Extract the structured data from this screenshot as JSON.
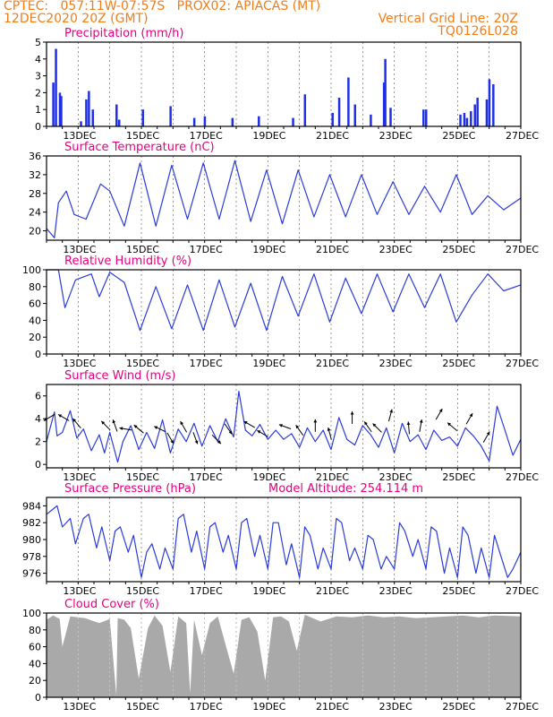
{
  "header": {
    "line1": "CPTEC:   057:11W-07:57S   PROX02: APIACAS (MT)",
    "line2": "12DEC2020 20Z (GMT)",
    "grid_note": "Vertical Grid Line: 20Z",
    "model_id": "TQ0126L028"
  },
  "colors": {
    "frame": "#000000",
    "title_magenta": "#e6007e",
    "header_orange": "#f07d1a",
    "bar_blue": "#1f2fe6",
    "line_blue": "#2a3bd9",
    "cloud_gray": "#a9a9a9",
    "grid": "#555555"
  },
  "shared_time_axis": {
    "start": "12DEC2020 20Z",
    "end": "27DEC2020 20Z",
    "tick_labels": [
      "13DEC",
      "15DEC",
      "17DEC",
      "19DEC",
      "21DEC",
      "23DEC",
      "25DEC",
      "27DEC"
    ],
    "vertical_grid_lines": "daily at 20Z, dashed"
  },
  "chart_data": [
    {
      "type": "bar",
      "title": "Precipitation (mm/h)",
      "ylim": [
        0,
        5
      ],
      "yticks": [
        0,
        1,
        2,
        3,
        4,
        5
      ],
      "x": [
        "2020-12-13 01Z",
        "2020-12-13 03Z",
        "2020-12-13 06Z",
        "2020-12-13 07Z",
        "2020-12-13 22Z",
        "2020-12-14 02Z",
        "2020-12-14 04Z",
        "2020-12-14 07Z",
        "2020-12-15 01Z",
        "2020-12-15 03Z",
        "2020-12-15 21Z",
        "2020-12-16 18Z",
        "2020-12-17 12Z",
        "2020-12-17 20Z",
        "2020-12-18 17Z",
        "2020-12-19 13Z",
        "2020-12-20 15Z",
        "2020-12-21 00Z",
        "2020-12-21 21Z",
        "2020-12-22 02Z",
        "2020-12-22 09Z",
        "2020-12-22 14Z",
        "2020-12-23 02Z",
        "2020-12-23 12Z",
        "2020-12-23 13Z",
        "2020-12-23 17Z",
        "2020-12-24 18Z",
        "2020-12-24 20Z",
        "2020-12-25 22Z",
        "2020-12-26 01Z",
        "2020-12-26 03Z",
        "2020-12-26 06Z",
        "2020-12-26 09Z",
        "2020-12-26 11Z",
        "2020-12-26 18Z",
        "2020-12-26 20Z",
        "2020-12-26 23Z"
      ],
      "values": [
        2.6,
        4.6,
        2.0,
        1.8,
        0.3,
        1.6,
        2.1,
        1.0,
        1.3,
        0.4,
        1.0,
        1.2,
        0.5,
        0.6,
        0.5,
        0.6,
        0.5,
        1.9,
        0.8,
        1.7,
        2.9,
        1.3,
        0.7,
        2.6,
        4.0,
        1.1,
        1.0,
        1.0,
        0.7,
        0.8,
        0.5,
        0.9,
        1.3,
        1.7,
        1.6,
        2.8,
        2.5
      ]
    },
    {
      "type": "line",
      "title": "Surface Temperature (nC)",
      "ylim": [
        18,
        36
      ],
      "yticks": [
        20,
        24,
        28,
        32,
        36
      ],
      "x": [
        "2020-12-12 20Z",
        "2020-12-13 02Z",
        "2020-12-13 05Z",
        "2020-12-13 11Z",
        "2020-12-13 17Z",
        "2020-12-14 02Z",
        "2020-12-14 13Z",
        "2020-12-14 20Z",
        "2020-12-15 07Z",
        "2020-12-15 19Z",
        "2020-12-16 07Z",
        "2020-12-16 19Z",
        "2020-12-17 07Z",
        "2020-12-17 19Z",
        "2020-12-18 07Z",
        "2020-12-18 19Z",
        "2020-12-19 07Z",
        "2020-12-19 19Z",
        "2020-12-20 07Z",
        "2020-12-20 19Z",
        "2020-12-21 07Z",
        "2020-12-21 19Z",
        "2020-12-22 07Z",
        "2020-12-22 19Z",
        "2020-12-23 07Z",
        "2020-12-23 19Z",
        "2020-12-24 07Z",
        "2020-12-24 19Z",
        "2020-12-25 07Z",
        "2020-12-25 19Z",
        "2020-12-26 07Z",
        "2020-12-26 19Z",
        "2020-12-27 07Z",
        "2020-12-27 20Z"
      ],
      "values": [
        20.5,
        18.5,
        26.0,
        28.5,
        23.5,
        22.5,
        30.0,
        28.5,
        21.0,
        34.5,
        21.0,
        34.0,
        22.5,
        34.5,
        22.5,
        35.0,
        22.0,
        33.0,
        21.5,
        33.0,
        23.0,
        32.0,
        23.0,
        32.0,
        23.5,
        30.5,
        23.5,
        29.5,
        24.0,
        32.0,
        23.5,
        27.5,
        24.5,
        27.0
      ]
    },
    {
      "type": "line",
      "title": "Relative Humidity (%)",
      "ylim": [
        0,
        100
      ],
      "yticks": [
        0,
        20,
        40,
        60,
        80,
        100
      ],
      "x": [
        "2020-12-12 20Z",
        "2020-12-13 05Z",
        "2020-12-13 10Z",
        "2020-12-13 18Z",
        "2020-12-14 06Z",
        "2020-12-14 12Z",
        "2020-12-14 20Z",
        "2020-12-15 07Z",
        "2020-12-15 19Z",
        "2020-12-16 07Z",
        "2020-12-16 19Z",
        "2020-12-17 07Z",
        "2020-12-17 19Z",
        "2020-12-18 07Z",
        "2020-12-18 19Z",
        "2020-12-19 07Z",
        "2020-12-19 19Z",
        "2020-12-20 07Z",
        "2020-12-20 19Z",
        "2020-12-21 07Z",
        "2020-12-21 19Z",
        "2020-12-22 07Z",
        "2020-12-22 19Z",
        "2020-12-23 07Z",
        "2020-12-23 19Z",
        "2020-12-24 07Z",
        "2020-12-24 19Z",
        "2020-12-25 07Z",
        "2020-12-25 19Z",
        "2020-12-26 07Z",
        "2020-12-26 19Z",
        "2020-12-27 07Z",
        "2020-12-27 20Z"
      ],
      "values": [
        100,
        100,
        55,
        88,
        95,
        68,
        97,
        85,
        28,
        80,
        30,
        82,
        28,
        88,
        32,
        84,
        28,
        92,
        45,
        95,
        38,
        90,
        48,
        95,
        50,
        95,
        55,
        95,
        38,
        70,
        95,
        75,
        82
      ]
    },
    {
      "type": "line",
      "title": "Surface Wind (m/s)",
      "ylim": [
        -0.3,
        7
      ],
      "yticks": [
        0,
        2,
        4,
        6
      ],
      "x": [
        "2020-12-12 20Z",
        "2020-12-13 02Z",
        "2020-12-13 04Z",
        "2020-12-13 08Z",
        "2020-12-13 14Z",
        "2020-12-13 19Z",
        "2020-12-14 00Z",
        "2020-12-14 06Z",
        "2020-12-14 12Z",
        "2020-12-14 16Z",
        "2020-12-14 20Z",
        "2020-12-15 02Z",
        "2020-12-15 06Z",
        "2020-12-15 12Z",
        "2020-12-15 18Z",
        "2020-12-16 00Z",
        "2020-12-16 06Z",
        "2020-12-16 12Z",
        "2020-12-16 18Z",
        "2020-12-17 00Z",
        "2020-12-17 06Z",
        "2020-12-17 12Z",
        "2020-12-17 18Z",
        "2020-12-18 00Z",
        "2020-12-18 06Z",
        "2020-12-18 12Z",
        "2020-12-18 18Z",
        "2020-12-18 22Z",
        "2020-12-19 03Z",
        "2020-12-19 08Z",
        "2020-12-19 14Z",
        "2020-12-19 20Z",
        "2020-12-20 02Z",
        "2020-12-20 08Z",
        "2020-12-20 14Z",
        "2020-12-20 20Z",
        "2020-12-21 02Z",
        "2020-12-21 08Z",
        "2020-12-21 14Z",
        "2020-12-21 20Z",
        "2020-12-22 02Z",
        "2020-12-22 08Z",
        "2020-12-22 14Z",
        "2020-12-22 20Z",
        "2020-12-23 02Z",
        "2020-12-23 08Z",
        "2020-12-23 14Z",
        "2020-12-23 20Z",
        "2020-12-24 02Z",
        "2020-12-24 08Z",
        "2020-12-24 14Z",
        "2020-12-24 20Z",
        "2020-12-25 02Z",
        "2020-12-25 08Z",
        "2020-12-25 14Z",
        "2020-12-25 20Z",
        "2020-12-26 02Z",
        "2020-12-26 08Z",
        "2020-12-26 14Z",
        "2020-12-26 20Z",
        "2020-12-27 02Z",
        "2020-12-27 08Z",
        "2020-12-27 14Z",
        "2020-12-27 20Z"
      ],
      "values": [
        2.0,
        4.6,
        2.5,
        2.8,
        4.7,
        2.3,
        3.1,
        1.2,
        2.6,
        1.0,
        2.8,
        0.2,
        2.0,
        3.4,
        1.3,
        2.8,
        1.4,
        3.9,
        1.0,
        3.1,
        2.0,
        3.6,
        1.6,
        3.4,
        2.0,
        4.0,
        2.4,
        6.4,
        3.0,
        2.5,
        3.5,
        2.2,
        3.0,
        2.2,
        2.7,
        1.5,
        3.2,
        2.0,
        3.0,
        1.3,
        4.1,
        2.2,
        1.7,
        3.4,
        2.6,
        1.5,
        3.2,
        1.0,
        3.6,
        2.0,
        2.6,
        1.3,
        3.0,
        2.1,
        2.4,
        1.6,
        3.2,
        2.5,
        1.6,
        0.3,
        5.1,
        3.0,
        0.8,
        2.2
      ],
      "wind_arrows": {
        "x": [
          "2020-12-12 22Z",
          "2020-12-13 09Z",
          "2020-12-13 19Z",
          "2020-12-14 17Z",
          "2020-12-15 00Z",
          "2020-12-15 08Z",
          "2020-12-15 18Z",
          "2020-12-16 10Z",
          "2020-12-16 18Z",
          "2020-12-17 04Z",
          "2020-12-17 13Z",
          "2020-12-18 05Z",
          "2020-12-18 14Z",
          "2020-12-19 06Z",
          "2020-12-19 16Z",
          "2020-12-20 09Z",
          "2020-12-20 20Z",
          "2020-12-21 08Z",
          "2020-12-21 19Z",
          "2020-12-22 12Z",
          "2020-12-23 00Z",
          "2020-12-23 07Z",
          "2020-12-23 17Z",
          "2020-12-24 07Z",
          "2020-12-24 16Z",
          "2020-12-25 06Z",
          "2020-12-25 16Z",
          "2020-12-26 05Z",
          "2020-12-26 18Z"
        ],
        "y": [
          4.1,
          4.1,
          3.6,
          3.4,
          3.4,
          3.1,
          3.1,
          3.1,
          2.3,
          3.3,
          2.3,
          2.2,
          3.1,
          3.5,
          2.7,
          3.3,
          3.0,
          3.4,
          2.7,
          4.1,
          3.3,
          3.2,
          4.3,
          3.2,
          3.4,
          4.4,
          3.3,
          4.0,
          2.4
        ],
        "dir_to_deg": [
          210,
          150,
          130,
          135,
          110,
          170,
          140,
          155,
          300,
          120,
          290,
          315,
          305,
          150,
          150,
          160,
          125,
          90,
          105,
          90,
          125,
          135,
          75,
          95,
          80,
          60,
          140,
          60,
          60
        ]
      }
    },
    {
      "type": "line",
      "title": "Surface Pressure (hPa)",
      "annotation": "Model Altitude: 254.114 m",
      "ylim": [
        975,
        985
      ],
      "yticks": [
        976,
        978,
        980,
        982,
        984
      ],
      "x": [
        "2020-12-12 20Z",
        "2020-12-13 00Z",
        "2020-12-13 04Z",
        "2020-12-13 08Z",
        "2020-12-13 14Z",
        "2020-12-13 18Z",
        "2020-12-14 00Z",
        "2020-12-14 04Z",
        "2020-12-14 10Z",
        "2020-12-14 14Z",
        "2020-12-14 20Z",
        "2020-12-15 00Z",
        "2020-12-15 04Z",
        "2020-12-15 10Z",
        "2020-12-15 14Z",
        "2020-12-15 20Z",
        "2020-12-16 00Z",
        "2020-12-16 04Z",
        "2020-12-16 10Z",
        "2020-12-16 14Z",
        "2020-12-16 20Z",
        "2020-12-17 00Z",
        "2020-12-17 04Z",
        "2020-12-17 10Z",
        "2020-12-17 14Z",
        "2020-12-17 20Z",
        "2020-12-18 00Z",
        "2020-12-18 04Z",
        "2020-12-18 10Z",
        "2020-12-18 14Z",
        "2020-12-18 20Z",
        "2020-12-19 00Z",
        "2020-12-19 04Z",
        "2020-12-19 10Z",
        "2020-12-19 14Z",
        "2020-12-19 20Z",
        "2020-12-20 00Z",
        "2020-12-20 04Z",
        "2020-12-20 10Z",
        "2020-12-20 14Z",
        "2020-12-20 20Z",
        "2020-12-21 00Z",
        "2020-12-21 04Z",
        "2020-12-21 10Z",
        "2020-12-21 14Z",
        "2020-12-21 20Z",
        "2020-12-22 00Z",
        "2020-12-22 04Z",
        "2020-12-22 10Z",
        "2020-12-22 14Z",
        "2020-12-22 20Z",
        "2020-12-23 00Z",
        "2020-12-23 04Z",
        "2020-12-23 10Z",
        "2020-12-23 14Z",
        "2020-12-23 20Z",
        "2020-12-24 00Z",
        "2020-12-24 04Z",
        "2020-12-24 10Z",
        "2020-12-24 14Z",
        "2020-12-24 20Z",
        "2020-12-25 00Z",
        "2020-12-25 04Z",
        "2020-12-25 10Z",
        "2020-12-25 14Z",
        "2020-12-25 20Z",
        "2020-12-26 00Z",
        "2020-12-26 04Z",
        "2020-12-26 10Z",
        "2020-12-26 14Z",
        "2020-12-26 20Z",
        "2020-12-27 00Z",
        "2020-12-27 04Z",
        "2020-12-27 10Z",
        "2020-12-27 14Z",
        "2020-12-27 20Z"
      ],
      "values": [
        983.0,
        983.5,
        984.0,
        981.5,
        982.5,
        979.5,
        982.5,
        983.0,
        979.0,
        981.5,
        977.5,
        981.0,
        981.5,
        978.5,
        980.5,
        975.5,
        978.5,
        979.5,
        976.5,
        979.0,
        976.5,
        982.5,
        983.0,
        978.5,
        981.0,
        976.5,
        981.5,
        982.0,
        978.5,
        980.5,
        976.5,
        982.0,
        982.5,
        978.0,
        980.5,
        976.5,
        982.0,
        982.0,
        977.0,
        979.5,
        975.5,
        981.5,
        980.5,
        976.5,
        979.0,
        976.5,
        982.5,
        982.0,
        977.5,
        979.0,
        976.5,
        980.5,
        980.0,
        976.5,
        978.0,
        976.5,
        982.0,
        981.0,
        978.0,
        980.0,
        976.5,
        981.5,
        981.0,
        976.0,
        979.0,
        975.5,
        981.5,
        980.5,
        976.0,
        979.0,
        975.5,
        980.5,
        978.5,
        975.5,
        976.5,
        978.5
      ]
    },
    {
      "type": "area",
      "title": "Cloud Cover (%)",
      "ylim": [
        0,
        100
      ],
      "yticks": [
        0,
        20,
        40,
        60,
        80,
        100
      ],
      "x": [
        "2020-12-12 20Z",
        "2020-12-13 01Z",
        "2020-12-13 06Z",
        "2020-12-13 08Z",
        "2020-12-13 14Z",
        "2020-12-14 01Z",
        "2020-12-14 12Z",
        "2020-12-14 20Z",
        "2020-12-15 01Z",
        "2020-12-15 02Z",
        "2020-12-15 07Z",
        "2020-12-15 12Z",
        "2020-12-15 18Z",
        "2020-12-16 01Z",
        "2020-12-16 06Z",
        "2020-12-16 12Z",
        "2020-12-16 18Z",
        "2020-12-17 00Z",
        "2020-12-17 06Z",
        "2020-12-17 09Z",
        "2020-12-17 12Z",
        "2020-12-17 18Z",
        "2020-12-18 00Z",
        "2020-12-18 06Z",
        "2020-12-18 12Z",
        "2020-12-18 18Z",
        "2020-12-19 00Z",
        "2020-12-19 06Z",
        "2020-12-19 12Z",
        "2020-12-19 18Z",
        "2020-12-20 00Z",
        "2020-12-20 06Z",
        "2020-12-20 12Z",
        "2020-12-20 18Z",
        "2020-12-21 00Z",
        "2020-12-21 06Z",
        "2020-12-21 12Z",
        "2020-12-21 18Z",
        "2020-12-22 00Z",
        "2020-12-22 12Z",
        "2020-12-23 00Z",
        "2020-12-23 12Z",
        "2020-12-24 00Z",
        "2020-12-24 12Z",
        "2020-12-25 00Z",
        "2020-12-25 12Z",
        "2020-12-26 00Z",
        "2020-12-26 12Z",
        "2020-12-27 00Z",
        "2020-12-27 20Z"
      ],
      "values": [
        92,
        97,
        93,
        60,
        96,
        94,
        88,
        93,
        2,
        94,
        92,
        82,
        22,
        82,
        97,
        85,
        30,
        96,
        88,
        5,
        92,
        50,
        88,
        96,
        62,
        28,
        92,
        95,
        78,
        20,
        95,
        96,
        90,
        55,
        98,
        94,
        90,
        93,
        96,
        95,
        97,
        95,
        96,
        94,
        95,
        96,
        97,
        95,
        97,
        96
      ]
    }
  ]
}
